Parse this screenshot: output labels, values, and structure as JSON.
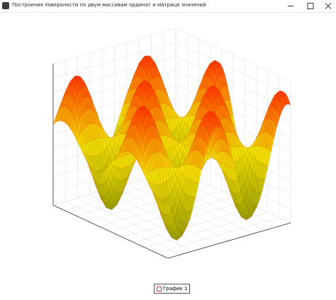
{
  "window": {
    "title": "Построения поверхности по двум массивам ординат и матрице значений"
  },
  "legend": {
    "items": [
      "График 1"
    ]
  }
}
